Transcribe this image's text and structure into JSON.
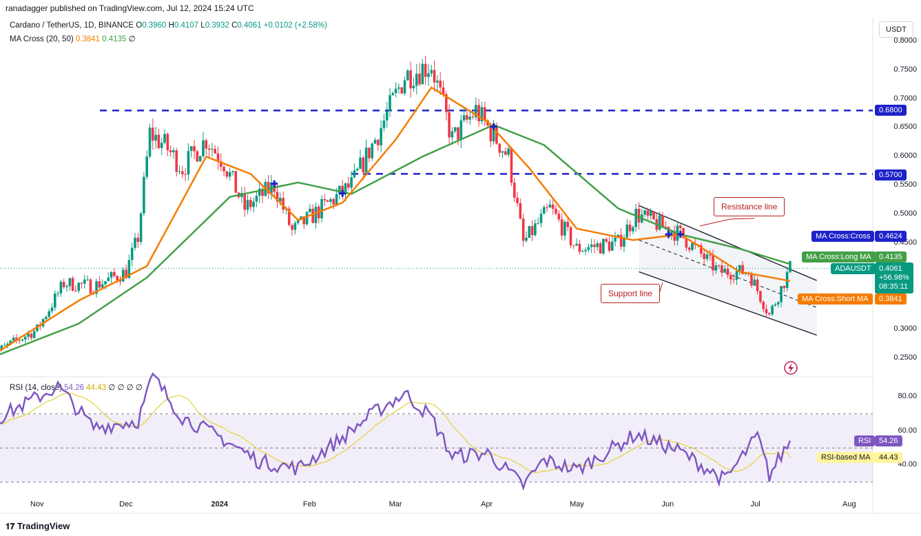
{
  "header": {
    "publisher": "ranadagger published on TradingView.com, Jul 12, 2024 15:24 UTC"
  },
  "legend": {
    "symbol": "Cardano / TetherUS, 1D, BINANCE",
    "o_label": "O",
    "o": "0.3960",
    "h_label": "H",
    "h": "0.4107",
    "l_label": "L",
    "l": "0.3932",
    "c_label": "C",
    "c": "0.4061",
    "change": "+0.0102 (+2.58%)",
    "ma_label": "MA Cross (20, 50)",
    "ma_short": "0.3841",
    "ma_long": "0.4135",
    "ma_extra": "∅"
  },
  "rsi_legend": {
    "label": "RSI (14, close)",
    "rsi": "54.26",
    "rsi_ma": "44.43",
    "extra": "∅ ∅ ∅ ∅"
  },
  "currency": "USDT",
  "y_ticks": [
    "0.8000",
    "0.7500",
    "0.7000",
    "0.6500",
    "0.6000",
    "0.5500",
    "0.5000",
    "0.4500",
    "0.3000",
    "0.2500"
  ],
  "rsi_ticks": [
    "80.00",
    "60.00",
    "40.00"
  ],
  "x_ticks": [
    "Nov",
    "Dec",
    "2024",
    "Feb",
    "Mar",
    "Apr",
    "May",
    "Jun",
    "Jul",
    "Aug"
  ],
  "levels": {
    "upper": "0.6800",
    "lower": "0.5700"
  },
  "tags": {
    "cross_label": "MA Cross:Cross",
    "cross_value": "0.4624",
    "long_label": "MA Cross:Long MA",
    "long_value": "0.4135",
    "symbol_label": "ADAUSDT",
    "price": "0.4061",
    "pct": "+56.98%",
    "countdown": "08:35:11",
    "short_label": "MA Cross:Short MA",
    "short_value": "0.3841",
    "rsi_label": "RSI",
    "rsi_value": "54.26",
    "rsima_label": "RSI-based MA",
    "rsima_value": "44.43"
  },
  "annotations": {
    "resistance": "Resistance line",
    "support": "Support line"
  },
  "footer": {
    "brand": "TradingView"
  },
  "colors": {
    "up": "#089981",
    "down": "#f23645",
    "ma_short": "#f57c00",
    "ma_long": "#43a047",
    "level": "#1e22c9",
    "rsi": "#7e57c2",
    "rsi_ma": "#e6d342",
    "channel": "#131722"
  },
  "chart_data": {
    "type": "candlestick",
    "symbol": "ADAUSDT",
    "timeframe": "1D",
    "ylim": [
      0.24,
      0.81
    ],
    "key_levels": [
      0.68,
      0.57
    ],
    "ma_cross_points": [
      {
        "date": "2024-01-20",
        "price": 0.553
      },
      {
        "date": "2024-02-12",
        "price": 0.536
      },
      {
        "date": "2024-04-03",
        "price": 0.652
      },
      {
        "date": "2024-06-01",
        "price": 0.465
      },
      {
        "date": "2024-06-05",
        "price": 0.465
      }
    ],
    "price_path": [
      {
        "date": "2023-10-16",
        "close": 0.255
      },
      {
        "date": "2023-11-01",
        "close": 0.3
      },
      {
        "date": "2023-11-10",
        "close": 0.38
      },
      {
        "date": "2023-11-20",
        "close": 0.375
      },
      {
        "date": "2023-12-01",
        "close": 0.4
      },
      {
        "date": "2023-12-05",
        "close": 0.46
      },
      {
        "date": "2023-12-09",
        "close": 0.64
      },
      {
        "date": "2023-12-14",
        "close": 0.62
      },
      {
        "date": "2023-12-20",
        "close": 0.58
      },
      {
        "date": "2023-12-28",
        "close": 0.63
      },
      {
        "date": "2024-01-03",
        "close": 0.59
      },
      {
        "date": "2024-01-10",
        "close": 0.51
      },
      {
        "date": "2024-01-20",
        "close": 0.55
      },
      {
        "date": "2024-01-26",
        "close": 0.47
      },
      {
        "date": "2024-02-05",
        "close": 0.51
      },
      {
        "date": "2024-02-15",
        "close": 0.55
      },
      {
        "date": "2024-02-24",
        "close": 0.64
      },
      {
        "date": "2024-03-04",
        "close": 0.74
      },
      {
        "date": "2024-03-13",
        "close": 0.76
      },
      {
        "date": "2024-03-20",
        "close": 0.63
      },
      {
        "date": "2024-03-28",
        "close": 0.68
      },
      {
        "date": "2024-04-08",
        "close": 0.6
      },
      {
        "date": "2024-04-13",
        "close": 0.45
      },
      {
        "date": "2024-04-22",
        "close": 0.51
      },
      {
        "date": "2024-05-01",
        "close": 0.44
      },
      {
        "date": "2024-05-15",
        "close": 0.45
      },
      {
        "date": "2024-05-21",
        "close": 0.5
      },
      {
        "date": "2024-06-05",
        "close": 0.465
      },
      {
        "date": "2024-06-18",
        "close": 0.4
      },
      {
        "date": "2024-06-28",
        "close": 0.4
      },
      {
        "date": "2024-07-05",
        "close": 0.325
      },
      {
        "date": "2024-07-12",
        "close": 0.4061
      }
    ],
    "ma_short": [
      {
        "date": "2023-10-16",
        "value": 0.252
      },
      {
        "date": "2023-11-15",
        "value": 0.35
      },
      {
        "date": "2023-12-08",
        "value": 0.41
      },
      {
        "date": "2023-12-28",
        "value": 0.6
      },
      {
        "date": "2024-01-12",
        "value": 0.57
      },
      {
        "date": "2024-01-28",
        "value": 0.49
      },
      {
        "date": "2024-02-12",
        "value": 0.52
      },
      {
        "date": "2024-03-01",
        "value": 0.63
      },
      {
        "date": "2024-03-13",
        "value": 0.72
      },
      {
        "date": "2024-04-01",
        "value": 0.66
      },
      {
        "date": "2024-04-15",
        "value": 0.58
      },
      {
        "date": "2024-05-01",
        "value": 0.475
      },
      {
        "date": "2024-05-20",
        "value": 0.455
      },
      {
        "date": "2024-06-05",
        "value": 0.465
      },
      {
        "date": "2024-06-25",
        "value": 0.4
      },
      {
        "date": "2024-07-12",
        "value": 0.3841
      }
    ],
    "ma_long": [
      {
        "date": "2023-10-16",
        "value": 0.25
      },
      {
        "date": "2023-11-15",
        "value": 0.31
      },
      {
        "date": "2023-12-08",
        "value": 0.39
      },
      {
        "date": "2024-01-05",
        "value": 0.53
      },
      {
        "date": "2024-01-28",
        "value": 0.555
      },
      {
        "date": "2024-02-15",
        "value": 0.535
      },
      {
        "date": "2024-03-10",
        "value": 0.6
      },
      {
        "date": "2024-04-03",
        "value": 0.655
      },
      {
        "date": "2024-04-20",
        "value": 0.62
      },
      {
        "date": "2024-05-15",
        "value": 0.51
      },
      {
        "date": "2024-06-05",
        "value": 0.465
      },
      {
        "date": "2024-06-25",
        "value": 0.44
      },
      {
        "date": "2024-07-12",
        "value": 0.4135
      }
    ],
    "channel": {
      "upper": [
        {
          "date": "2024-05-22",
          "price": 0.515
        },
        {
          "date": "2024-07-21",
          "price": 0.385
        }
      ],
      "middle": [
        {
          "date": "2024-05-22",
          "price": 0.455
        },
        {
          "date": "2024-07-21",
          "price": 0.338
        }
      ],
      "lower": [
        {
          "date": "2024-05-22",
          "price": 0.4
        },
        {
          "date": "2024-07-21",
          "price": 0.29
        }
      ]
    },
    "rsi": {
      "ylim": [
        20,
        95
      ],
      "levels": [
        70,
        50,
        30
      ],
      "values": [
        {
          "date": "2023-10-16",
          "value": 65
        },
        {
          "date": "2023-11-08",
          "value": 86
        },
        {
          "date": "2023-11-20",
          "value": 62
        },
        {
          "date": "2023-12-05",
          "value": 66
        },
        {
          "date": "2023-12-10",
          "value": 92
        },
        {
          "date": "2023-12-20",
          "value": 68
        },
        {
          "date": "2024-01-03",
          "value": 55
        },
        {
          "date": "2024-01-15",
          "value": 42
        },
        {
          "date": "2024-01-28",
          "value": 38
        },
        {
          "date": "2024-02-12",
          "value": 56
        },
        {
          "date": "2024-02-22",
          "value": 70
        },
        {
          "date": "2024-03-04",
          "value": 82
        },
        {
          "date": "2024-03-13",
          "value": 68
        },
        {
          "date": "2024-03-20",
          "value": 45
        },
        {
          "date": "2024-04-01",
          "value": 47
        },
        {
          "date": "2024-04-13",
          "value": 28
        },
        {
          "date": "2024-04-20",
          "value": 43
        },
        {
          "date": "2024-05-01",
          "value": 37
        },
        {
          "date": "2024-05-21",
          "value": 58
        },
        {
          "date": "2024-06-05",
          "value": 48
        },
        {
          "date": "2024-06-20",
          "value": 31
        },
        {
          "date": "2024-07-01",
          "value": 57
        },
        {
          "date": "2024-07-05",
          "value": 34
        },
        {
          "date": "2024-07-12",
          "value": 54.26
        }
      ],
      "ma_last": 44.43
    }
  }
}
